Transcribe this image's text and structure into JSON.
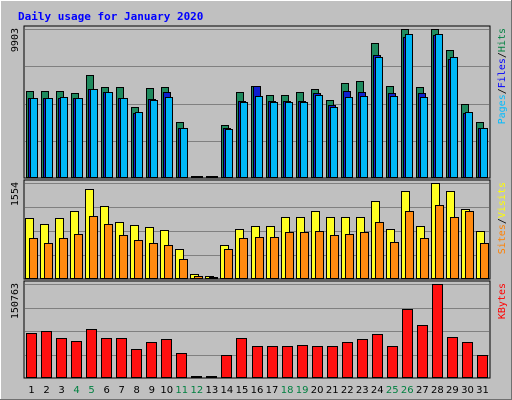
{
  "chart_data": {
    "type": "bar",
    "title": "Daily usage for January 2020",
    "days": [
      "1",
      "2",
      "3",
      "4",
      "5",
      "6",
      "7",
      "8",
      "9",
      "10",
      "11",
      "12",
      "13",
      "14",
      "15",
      "16",
      "17",
      "18",
      "19",
      "20",
      "21",
      "22",
      "23",
      "24",
      "25",
      "26",
      "27",
      "28",
      "29",
      "30",
      "31"
    ],
    "weekend_days": [
      "4",
      "5",
      "11",
      "12",
      "18",
      "19",
      "25",
      "26"
    ],
    "panels": [
      {
        "name": "hits-files-pages",
        "ymax_label": "9903",
        "legend": [
          "Pages",
          "/",
          "Files",
          "/",
          "Hits"
        ],
        "legend_colors": [
          "#00bbff",
          "#000000",
          "#0000ff",
          "#000000",
          "#008040"
        ],
        "series": [
          {
            "name": "Hits",
            "color": "#1f8a5e",
            "values": [
              5720,
              5720,
              5720,
              5600,
              6760,
              5960,
              5960,
              4700,
              5900,
              5980,
              3660,
              110,
              110,
              3520,
              5640,
              6080,
              5460,
              5460,
              5640,
              5880,
              5160,
              6280,
              6400,
              8860,
              6080,
              9810,
              5960,
              9810,
              8450,
              4900,
              3660
            ]
          },
          {
            "name": "Files",
            "color": "#1020d0",
            "values": [
              5280,
              5280,
              5280,
              5260,
              5860,
              5640,
              5280,
              4310,
              5210,
              5690,
              3300,
              70,
              70,
              3270,
              5100,
              6040,
              5100,
              5100,
              5100,
              5570,
              4830,
              5750,
              5640,
              8090,
              5570,
              9260,
              5570,
              9400,
              7850,
              4310,
              3270
            ]
          },
          {
            "name": "Pages",
            "color": "#00b7f5",
            "values": [
              5300,
              5300,
              5360,
              5240,
              5860,
              5640,
              5300,
              4350,
              5110,
              5360,
              3260,
              70,
              70,
              3230,
              4990,
              5410,
              4990,
              4990,
              4990,
              5480,
              4700,
              5360,
              5410,
              7950,
              5410,
              9460,
              5360,
              9460,
              7950,
              4350,
              3260
            ]
          }
        ]
      },
      {
        "name": "visits-sites",
        "ymax_label": "1554",
        "legend": [
          "Sites",
          "/",
          "Visits"
        ],
        "legend_colors": [
          "#ff8000",
          "#000000",
          "#ffff00"
        ],
        "series": [
          {
            "name": "Visits",
            "color": "#ffff22",
            "values": [
              950,
              860,
              950,
              1050,
              1390,
              1130,
              880,
              840,
              810,
              760,
              470,
              70,
              40,
              520,
              770,
              820,
              820,
              960,
              960,
              1060,
              960,
              960,
              960,
              1210,
              770,
              1360,
              820,
              1490,
              1360,
              1090,
              750
            ]
          },
          {
            "name": "Sites",
            "color": "#ff8a10",
            "values": [
              640,
              560,
              640,
              700,
              980,
              850,
              680,
              600,
              560,
              530,
              310,
              40,
              30,
              470,
              630,
              650,
              650,
              730,
              730,
              740,
              690,
              700,
              730,
              890,
              580,
              1050,
              630,
              1150,
              960,
              1050,
              560
            ]
          }
        ]
      },
      {
        "name": "kbytes",
        "ymax_label": "150763",
        "legend": [
          "KBytes"
        ],
        "legend_colors": [
          "#ff0000"
        ],
        "series": [
          {
            "name": "KBytes",
            "color": "#ff1010",
            "values": [
              71800,
              76000,
              63900,
              59300,
              78200,
              63900,
              63900,
              46500,
              57600,
              62000,
              39300,
              1500,
              1500,
              36400,
              64200,
              50900,
              50900,
              50900,
              53200,
              50900,
              50900,
              57600,
              62000,
              70700,
              50900,
              110800,
              85800,
              150763,
              65000,
              57600,
              36400
            ]
          }
        ]
      }
    ]
  }
}
